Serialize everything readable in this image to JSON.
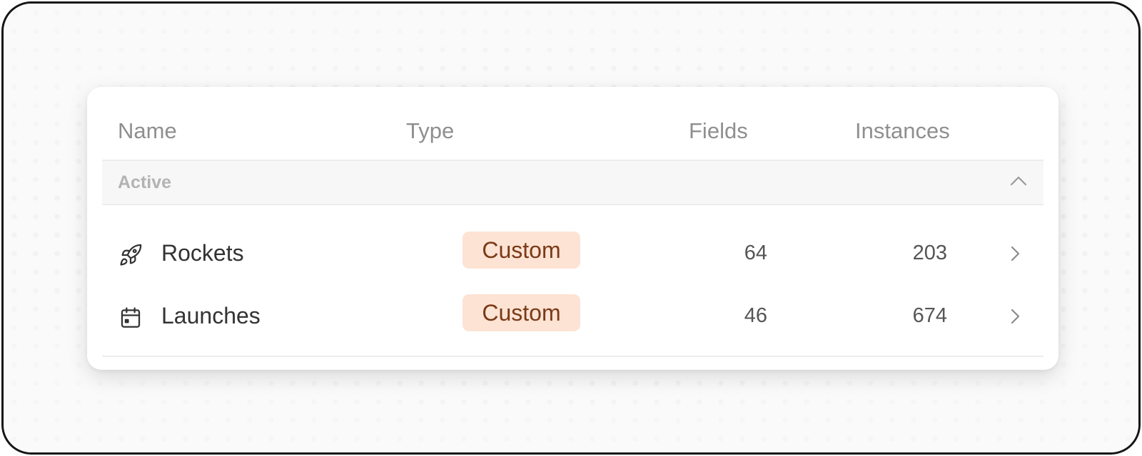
{
  "table": {
    "columns": {
      "name": "Name",
      "type": "Type",
      "fields": "Fields",
      "instances": "Instances"
    },
    "group": {
      "label": "Active",
      "expanded": true
    },
    "rows": [
      {
        "icon": "rocket-icon",
        "name": "Rockets",
        "type": "Custom",
        "fields": "64",
        "instances": "203"
      },
      {
        "icon": "calendar-icon",
        "name": "Launches",
        "type": "Custom",
        "fields": "46",
        "instances": "674"
      }
    ]
  },
  "colors": {
    "badge_bg": "#fde3d3",
    "badge_text": "#7a3a18"
  }
}
